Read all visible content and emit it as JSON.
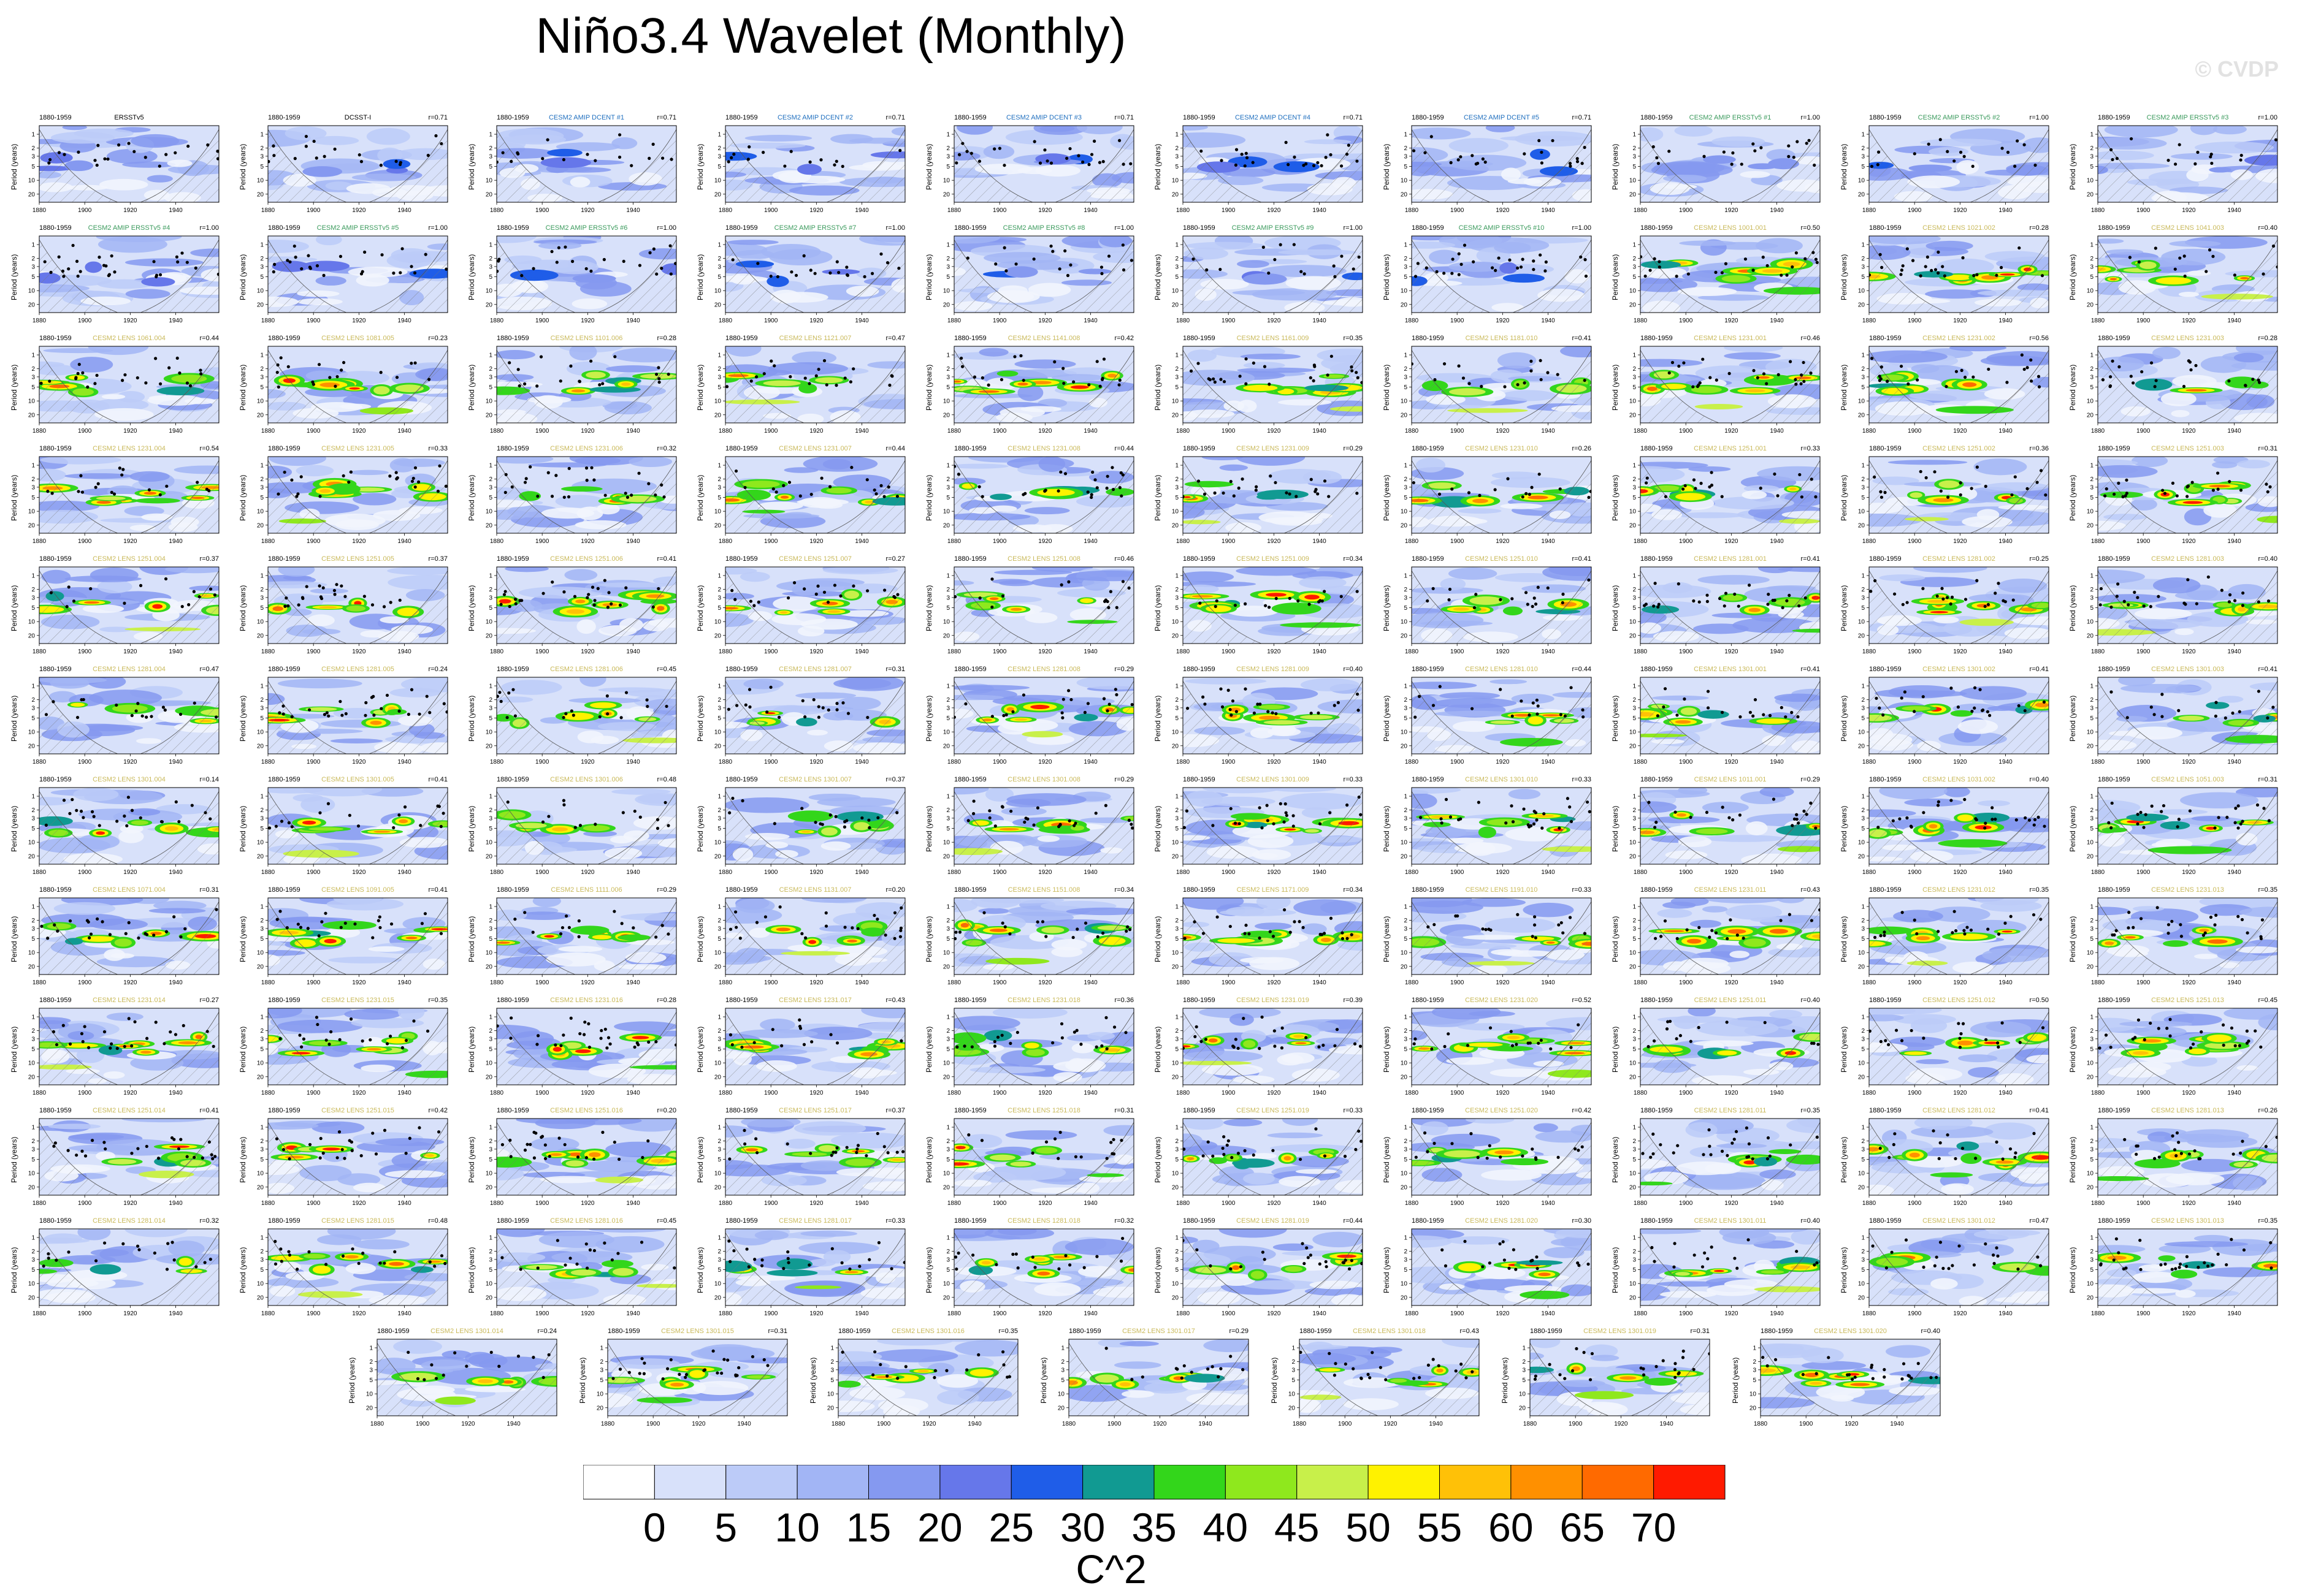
{
  "title": "Niño3.4 Wavelet (Monthly)",
  "watermark": "© CVDP",
  "colors": {
    "obs_title": "#000000",
    "amip_dcent_title": "#1f6fbf",
    "amip_ersst_title": "#3a9a5c",
    "lens_title": "#c9b95a"
  },
  "colorbar": {
    "levels": [
      "0",
      "5",
      "10",
      "15",
      "20",
      "25",
      "30",
      "35",
      "40",
      "45",
      "50",
      "55",
      "60",
      "65",
      "70"
    ],
    "colors": [
      "#ffffff",
      "#d8e1fa",
      "#bccbf8",
      "#a2b5f5",
      "#8599f0",
      "#6677ea",
      "#1f5de8",
      "#119a92",
      "#33d61b",
      "#8fe81d",
      "#c8f04a",
      "#fff200",
      "#ffc107",
      "#ff9000",
      "#ff6a00",
      "#ff1a00"
    ],
    "units": "C^2"
  },
  "chart_data": {
    "type": "heatmap",
    "description": "Wavelet power spectra of Niño3.4 SST index, 1880-1959",
    "xlim": [
      1880,
      1959
    ],
    "x_ticks": [
      "1880",
      "1900",
      "1920",
      "1940"
    ],
    "ylabel": "Period (years)",
    "y_ticks": [
      "1",
      "2",
      "3",
      "5",
      "10",
      "20"
    ],
    "period_label": "1880-1959",
    "panels": [
      {
        "name": "ERSSTv5",
        "r": "",
        "kind": "obs"
      },
      {
        "name": "DCSST-I",
        "r": "r=0.71",
        "kind": "obs"
      },
      {
        "name": "CESM2 AMIP DCENT #1",
        "r": "r=0.71",
        "kind": "amip_dcent"
      },
      {
        "name": "CESM2 AMIP DCENT #2",
        "r": "r=0.71",
        "kind": "amip_dcent"
      },
      {
        "name": "CESM2 AMIP DCENT #3",
        "r": "r=0.71",
        "kind": "amip_dcent"
      },
      {
        "name": "CESM2 AMIP DCENT #4",
        "r": "r=0.71",
        "kind": "amip_dcent"
      },
      {
        "name": "CESM2 AMIP DCENT #5",
        "r": "r=0.71",
        "kind": "amip_dcent"
      },
      {
        "name": "CESM2 AMIP ERSSTv5 #1",
        "r": "r=1.00",
        "kind": "amip_ersst"
      },
      {
        "name": "CESM2 AMIP ERSSTv5 #2",
        "r": "r=1.00",
        "kind": "amip_ersst"
      },
      {
        "name": "CESM2 AMIP ERSSTv5 #3",
        "r": "r=1.00",
        "kind": "amip_ersst"
      },
      {
        "name": "CESM2 AMIP ERSSTv5 #4",
        "r": "r=1.00",
        "kind": "amip_ersst"
      },
      {
        "name": "CESM2 AMIP ERSSTv5 #5",
        "r": "r=1.00",
        "kind": "amip_ersst"
      },
      {
        "name": "CESM2 AMIP ERSSTv5 #6",
        "r": "r=1.00",
        "kind": "amip_ersst"
      },
      {
        "name": "CESM2 AMIP ERSSTv5 #7",
        "r": "r=1.00",
        "kind": "amip_ersst"
      },
      {
        "name": "CESM2 AMIP ERSSTv5 #8",
        "r": "r=1.00",
        "kind": "amip_ersst"
      },
      {
        "name": "CESM2 AMIP ERSSTv5 #9",
        "r": "r=1.00",
        "kind": "amip_ersst"
      },
      {
        "name": "CESM2 AMIP ERSSTv5 #10",
        "r": "r=1.00",
        "kind": "amip_ersst"
      },
      {
        "name": "CESM2 LENS 1001.001",
        "r": "r=0.50",
        "kind": "lens"
      },
      {
        "name": "CESM2 LENS 1021.002",
        "r": "r=0.28",
        "kind": "lens"
      },
      {
        "name": "CESM2 LENS 1041.003",
        "r": "r=0.40",
        "kind": "lens"
      },
      {
        "name": "CESM2 LENS 1061.004",
        "r": "r=0.44",
        "kind": "lens"
      },
      {
        "name": "CESM2 LENS 1081.005",
        "r": "r=0.23",
        "kind": "lens"
      },
      {
        "name": "CESM2 LENS 1101.006",
        "r": "r=0.28",
        "kind": "lens"
      },
      {
        "name": "CESM2 LENS 1121.007",
        "r": "r=0.47",
        "kind": "lens"
      },
      {
        "name": "CESM2 LENS 1141.008",
        "r": "r=0.42",
        "kind": "lens"
      },
      {
        "name": "CESM2 LENS 1161.009",
        "r": "r=0.35",
        "kind": "lens"
      },
      {
        "name": "CESM2 LENS 1181.010",
        "r": "r=0.41",
        "kind": "lens"
      },
      {
        "name": "CESM2 LENS 1231.001",
        "r": "r=0.46",
        "kind": "lens"
      },
      {
        "name": "CESM2 LENS 1231.002",
        "r": "r=0.56",
        "kind": "lens"
      },
      {
        "name": "CESM2 LENS 1231.003",
        "r": "r=0.28",
        "kind": "lens"
      },
      {
        "name": "CESM2 LENS 1231.004",
        "r": "r=0.54",
        "kind": "lens"
      },
      {
        "name": "CESM2 LENS 1231.005",
        "r": "r=0.33",
        "kind": "lens"
      },
      {
        "name": "CESM2 LENS 1231.006",
        "r": "r=0.32",
        "kind": "lens"
      },
      {
        "name": "CESM2 LENS 1231.007",
        "r": "r=0.44",
        "kind": "lens"
      },
      {
        "name": "CESM2 LENS 1231.008",
        "r": "r=0.44",
        "kind": "lens"
      },
      {
        "name": "CESM2 LENS 1231.009",
        "r": "r=0.29",
        "kind": "lens"
      },
      {
        "name": "CESM2 LENS 1231.010",
        "r": "r=0.26",
        "kind": "lens"
      },
      {
        "name": "CESM2 LENS 1251.001",
        "r": "r=0.33",
        "kind": "lens"
      },
      {
        "name": "CESM2 LENS 1251.002",
        "r": "r=0.36",
        "kind": "lens"
      },
      {
        "name": "CESM2 LENS 1251.003",
        "r": "r=0.31",
        "kind": "lens"
      },
      {
        "name": "CESM2 LENS 1251.004",
        "r": "r=0.37",
        "kind": "lens"
      },
      {
        "name": "CESM2 LENS 1251.005",
        "r": "r=0.37",
        "kind": "lens"
      },
      {
        "name": "CESM2 LENS 1251.006",
        "r": "r=0.41",
        "kind": "lens"
      },
      {
        "name": "CESM2 LENS 1251.007",
        "r": "r=0.27",
        "kind": "lens"
      },
      {
        "name": "CESM2 LENS 1251.008",
        "r": "r=0.46",
        "kind": "lens"
      },
      {
        "name": "CESM2 LENS 1251.009",
        "r": "r=0.34",
        "kind": "lens"
      },
      {
        "name": "CESM2 LENS 1251.010",
        "r": "r=0.41",
        "kind": "lens"
      },
      {
        "name": "CESM2 LENS 1281.001",
        "r": "r=0.41",
        "kind": "lens"
      },
      {
        "name": "CESM2 LENS 1281.002",
        "r": "r=0.25",
        "kind": "lens"
      },
      {
        "name": "CESM2 LENS 1281.003",
        "r": "r=0.40",
        "kind": "lens"
      },
      {
        "name": "CESM2 LENS 1281.004",
        "r": "r=0.47",
        "kind": "lens"
      },
      {
        "name": "CESM2 LENS 1281.005",
        "r": "r=0.24",
        "kind": "lens"
      },
      {
        "name": "CESM2 LENS 1281.006",
        "r": "r=0.45",
        "kind": "lens"
      },
      {
        "name": "CESM2 LENS 1281.007",
        "r": "r=0.31",
        "kind": "lens"
      },
      {
        "name": "CESM2 LENS 1281.008",
        "r": "r=0.29",
        "kind": "lens"
      },
      {
        "name": "CESM2 LENS 1281.009",
        "r": "r=0.40",
        "kind": "lens"
      },
      {
        "name": "CESM2 LENS 1281.010",
        "r": "r=0.44",
        "kind": "lens"
      },
      {
        "name": "CESM2 LENS 1301.001",
        "r": "r=0.41",
        "kind": "lens"
      },
      {
        "name": "CESM2 LENS 1301.002",
        "r": "r=0.41",
        "kind": "lens"
      },
      {
        "name": "CESM2 LENS 1301.003",
        "r": "r=0.41",
        "kind": "lens"
      },
      {
        "name": "CESM2 LENS 1301.004",
        "r": "r=0.14",
        "kind": "lens"
      },
      {
        "name": "CESM2 LENS 1301.005",
        "r": "r=0.41",
        "kind": "lens"
      },
      {
        "name": "CESM2 LENS 1301.006",
        "r": "r=0.48",
        "kind": "lens"
      },
      {
        "name": "CESM2 LENS 1301.007",
        "r": "r=0.37",
        "kind": "lens"
      },
      {
        "name": "CESM2 LENS 1301.008",
        "r": "r=0.29",
        "kind": "lens"
      },
      {
        "name": "CESM2 LENS 1301.009",
        "r": "r=0.33",
        "kind": "lens"
      },
      {
        "name": "CESM2 LENS 1301.010",
        "r": "r=0.33",
        "kind": "lens"
      },
      {
        "name": "CESM2 LENS 1011.001",
        "r": "r=0.29",
        "kind": "lens"
      },
      {
        "name": "CESM2 LENS 1031.002",
        "r": "r=0.40",
        "kind": "lens"
      },
      {
        "name": "CESM2 LENS 1051.003",
        "r": "r=0.31",
        "kind": "lens"
      },
      {
        "name": "CESM2 LENS 1071.004",
        "r": "r=0.31",
        "kind": "lens"
      },
      {
        "name": "CESM2 LENS 1091.005",
        "r": "r=0.41",
        "kind": "lens"
      },
      {
        "name": "CESM2 LENS 1111.006",
        "r": "r=0.29",
        "kind": "lens"
      },
      {
        "name": "CESM2 LENS 1131.007",
        "r": "r=0.20",
        "kind": "lens"
      },
      {
        "name": "CESM2 LENS 1151.008",
        "r": "r=0.34",
        "kind": "lens"
      },
      {
        "name": "CESM2 LENS 1171.009",
        "r": "r=0.34",
        "kind": "lens"
      },
      {
        "name": "CESM2 LENS 1191.010",
        "r": "r=0.33",
        "kind": "lens"
      },
      {
        "name": "CESM2 LENS 1231.011",
        "r": "r=0.43",
        "kind": "lens"
      },
      {
        "name": "CESM2 LENS 1231.012",
        "r": "r=0.35",
        "kind": "lens"
      },
      {
        "name": "CESM2 LENS 1231.013",
        "r": "r=0.35",
        "kind": "lens"
      },
      {
        "name": "CESM2 LENS 1231.014",
        "r": "r=0.27",
        "kind": "lens"
      },
      {
        "name": "CESM2 LENS 1231.015",
        "r": "r=0.35",
        "kind": "lens"
      },
      {
        "name": "CESM2 LENS 1231.016",
        "r": "r=0.28",
        "kind": "lens"
      },
      {
        "name": "CESM2 LENS 1231.017",
        "r": "r=0.43",
        "kind": "lens"
      },
      {
        "name": "CESM2 LENS 1231.018",
        "r": "r=0.36",
        "kind": "lens"
      },
      {
        "name": "CESM2 LENS 1231.019",
        "r": "r=0.39",
        "kind": "lens"
      },
      {
        "name": "CESM2 LENS 1231.020",
        "r": "r=0.52",
        "kind": "lens"
      },
      {
        "name": "CESM2 LENS 1251.011",
        "r": "r=0.40",
        "kind": "lens"
      },
      {
        "name": "CESM2 LENS 1251.012",
        "r": "r=0.50",
        "kind": "lens"
      },
      {
        "name": "CESM2 LENS 1251.013",
        "r": "r=0.45",
        "kind": "lens"
      },
      {
        "name": "CESM2 LENS 1251.014",
        "r": "r=0.41",
        "kind": "lens"
      },
      {
        "name": "CESM2 LENS 1251.015",
        "r": "r=0.42",
        "kind": "lens"
      },
      {
        "name": "CESM2 LENS 1251.016",
        "r": "r=0.20",
        "kind": "lens"
      },
      {
        "name": "CESM2 LENS 1251.017",
        "r": "r=0.37",
        "kind": "lens"
      },
      {
        "name": "CESM2 LENS 1251.018",
        "r": "r=0.31",
        "kind": "lens"
      },
      {
        "name": "CESM2 LENS 1251.019",
        "r": "r=0.33",
        "kind": "lens"
      },
      {
        "name": "CESM2 LENS 1251.020",
        "r": "r=0.42",
        "kind": "lens"
      },
      {
        "name": "CESM2 LENS 1281.011",
        "r": "r=0.35",
        "kind": "lens"
      },
      {
        "name": "CESM2 LENS 1281.012",
        "r": "r=0.41",
        "kind": "lens"
      },
      {
        "name": "CESM2 LENS 1281.013",
        "r": "r=0.26",
        "kind": "lens"
      },
      {
        "name": "CESM2 LENS 1281.014",
        "r": "r=0.32",
        "kind": "lens"
      },
      {
        "name": "CESM2 LENS 1281.015",
        "r": "r=0.48",
        "kind": "lens"
      },
      {
        "name": "CESM2 LENS 1281.016",
        "r": "r=0.45",
        "kind": "lens"
      },
      {
        "name": "CESM2 LENS 1281.017",
        "r": "r=0.33",
        "kind": "lens"
      },
      {
        "name": "CESM2 LENS 1281.018",
        "r": "r=0.32",
        "kind": "lens"
      },
      {
        "name": "CESM2 LENS 1281.019",
        "r": "r=0.44",
        "kind": "lens"
      },
      {
        "name": "CESM2 LENS 1281.020",
        "r": "r=0.30",
        "kind": "lens"
      },
      {
        "name": "CESM2 LENS 1301.011",
        "r": "r=0.40",
        "kind": "lens"
      },
      {
        "name": "CESM2 LENS 1301.012",
        "r": "r=0.47",
        "kind": "lens"
      },
      {
        "name": "CESM2 LENS 1301.013",
        "r": "r=0.35",
        "kind": "lens"
      },
      {
        "name": "CESM2 LENS 1301.014",
        "r": "r=0.24",
        "kind": "lens"
      },
      {
        "name": "CESM2 LENS 1301.015",
        "r": "r=0.31",
        "kind": "lens"
      },
      {
        "name": "CESM2 LENS 1301.016",
        "r": "r=0.35",
        "kind": "lens"
      },
      {
        "name": "CESM2 LENS 1301.017",
        "r": "r=0.29",
        "kind": "lens"
      },
      {
        "name": "CESM2 LENS 1301.018",
        "r": "r=0.43",
        "kind": "lens"
      },
      {
        "name": "CESM2 LENS 1301.019",
        "r": "r=0.31",
        "kind": "lens"
      },
      {
        "name": "CESM2 LENS 1301.020",
        "r": "r=0.40",
        "kind": "lens"
      }
    ]
  }
}
